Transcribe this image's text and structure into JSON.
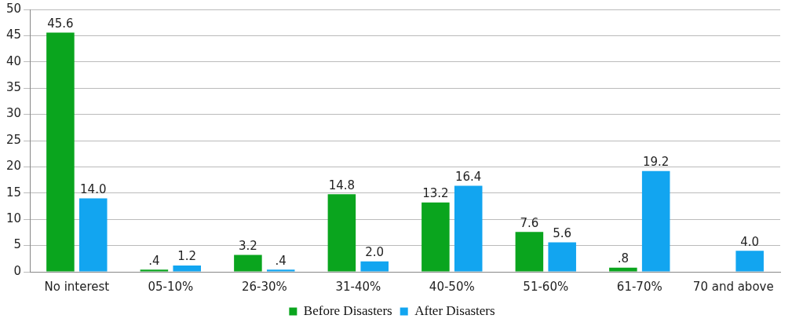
{
  "chart_data": {
    "type": "bar",
    "categories": [
      "No interest",
      "05-10%",
      "26-30%",
      "31-40%",
      "40-50%",
      "51-60%",
      "61-70%",
      "70 and above"
    ],
    "series": [
      {
        "name": "Before Disasters",
        "color": "#0aa51e",
        "values": [
          45.6,
          0.4,
          3.2,
          14.8,
          13.2,
          7.6,
          0.8,
          null
        ],
        "value_labels": [
          "45.6",
          ".4",
          "3.2",
          "14.8",
          "13.2",
          "7.6",
          ".8",
          null
        ]
      },
      {
        "name": "After Disasters",
        "color": "#12a5f0",
        "values": [
          14.0,
          1.2,
          0.4,
          2.0,
          16.4,
          5.6,
          19.2,
          4.0
        ],
        "value_labels": [
          "14.0",
          "1.2",
          ".4",
          "2.0",
          "16.4",
          "5.6",
          "19.2",
          "4.0"
        ]
      }
    ],
    "ylim": [
      0,
      50
    ],
    "yticks": [
      0,
      5,
      10,
      15,
      20,
      25,
      30,
      35,
      40,
      45,
      50
    ],
    "grid": "y",
    "legend": "bottom"
  }
}
